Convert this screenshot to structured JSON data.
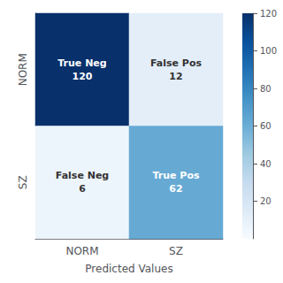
{
  "chart_data": {
    "type": "heatmap",
    "categories": [
      "NORM",
      "SZ"
    ],
    "y_categories": [
      "NORM",
      "SZ"
    ],
    "xlabel": "Predicted Values",
    "cells": [
      [
        120,
        12
      ],
      [
        6,
        62
      ]
    ],
    "cell_labels": [
      [
        "True Neg\n120",
        "False Pos\n12"
      ],
      [
        "False Neg\n6",
        "True Pos\n62"
      ]
    ],
    "data_labels": true,
    "colorbar_range": [
      0,
      120
    ],
    "colorbar_ticks": [
      20,
      40,
      60,
      80,
      100,
      120
    ]
  }
}
